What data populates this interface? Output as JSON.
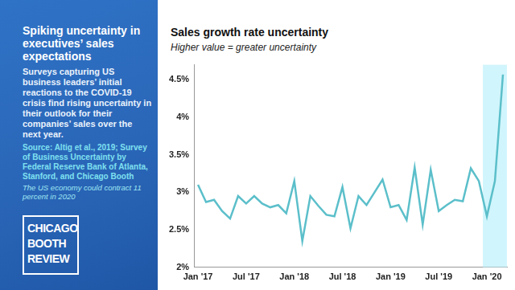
{
  "panel": {
    "title": "Spiking uncertainty in executives’ sales expectations",
    "description": "Surveys capturing US business leaders’ initial reactions to the COVID-19 crisis find rising uncertainty in their outlook for their companies’ sales over the next year.",
    "source": "Source: Altig et al., 2019; Survey of Business Uncertainty by Federal Reserve Bank of Atlanta, Stanford, and Chicago Booth",
    "note": "The US economy could contract 11 percent in 2020",
    "logo": [
      "CHICAGO",
      "BOOTH",
      "REVIEW"
    ]
  },
  "chart_data": {
    "type": "line",
    "title": "Sales growth rate uncertainty",
    "subtitle": "Higher value = greater uncertainty",
    "categories": [
      "Jan '17",
      null,
      null,
      null,
      null,
      null,
      "Jul '17",
      null,
      null,
      null,
      null,
      null,
      "Jan '18",
      null,
      null,
      null,
      null,
      null,
      "Jul '18",
      null,
      null,
      null,
      null,
      null,
      "Jan '19",
      null,
      null,
      null,
      null,
      null,
      "Jul '19",
      null,
      null,
      null,
      null,
      null,
      "Jan '20",
      null,
      null
    ],
    "values": [
      3.1,
      2.87,
      2.9,
      2.75,
      2.65,
      2.95,
      2.85,
      2.95,
      2.85,
      2.8,
      2.83,
      2.72,
      3.15,
      2.35,
      2.95,
      2.82,
      2.7,
      2.68,
      3.07,
      2.52,
      2.95,
      2.83,
      3.0,
      3.17,
      2.8,
      2.83,
      2.63,
      3.33,
      2.57,
      3.3,
      2.75,
      2.83,
      2.9,
      2.88,
      3.32,
      3.15,
      2.68,
      3.15,
      4.57
    ],
    "color": "#5bbfca",
    "marker": "none",
    "line_style": "solid",
    "highlight_from": "Jan '20",
    "ylim": [
      2,
      4.7
    ],
    "yticks": [
      {
        "value": 2,
        "label": "2%"
      },
      {
        "value": 2.5,
        "label": "2.5%"
      },
      {
        "value": 3,
        "label": "3%"
      },
      {
        "value": 3.5,
        "label": "3.5%"
      },
      {
        "value": 4,
        "label": "4%"
      },
      {
        "value": 4.5,
        "label": "4.5%"
      }
    ],
    "grid": false
  }
}
